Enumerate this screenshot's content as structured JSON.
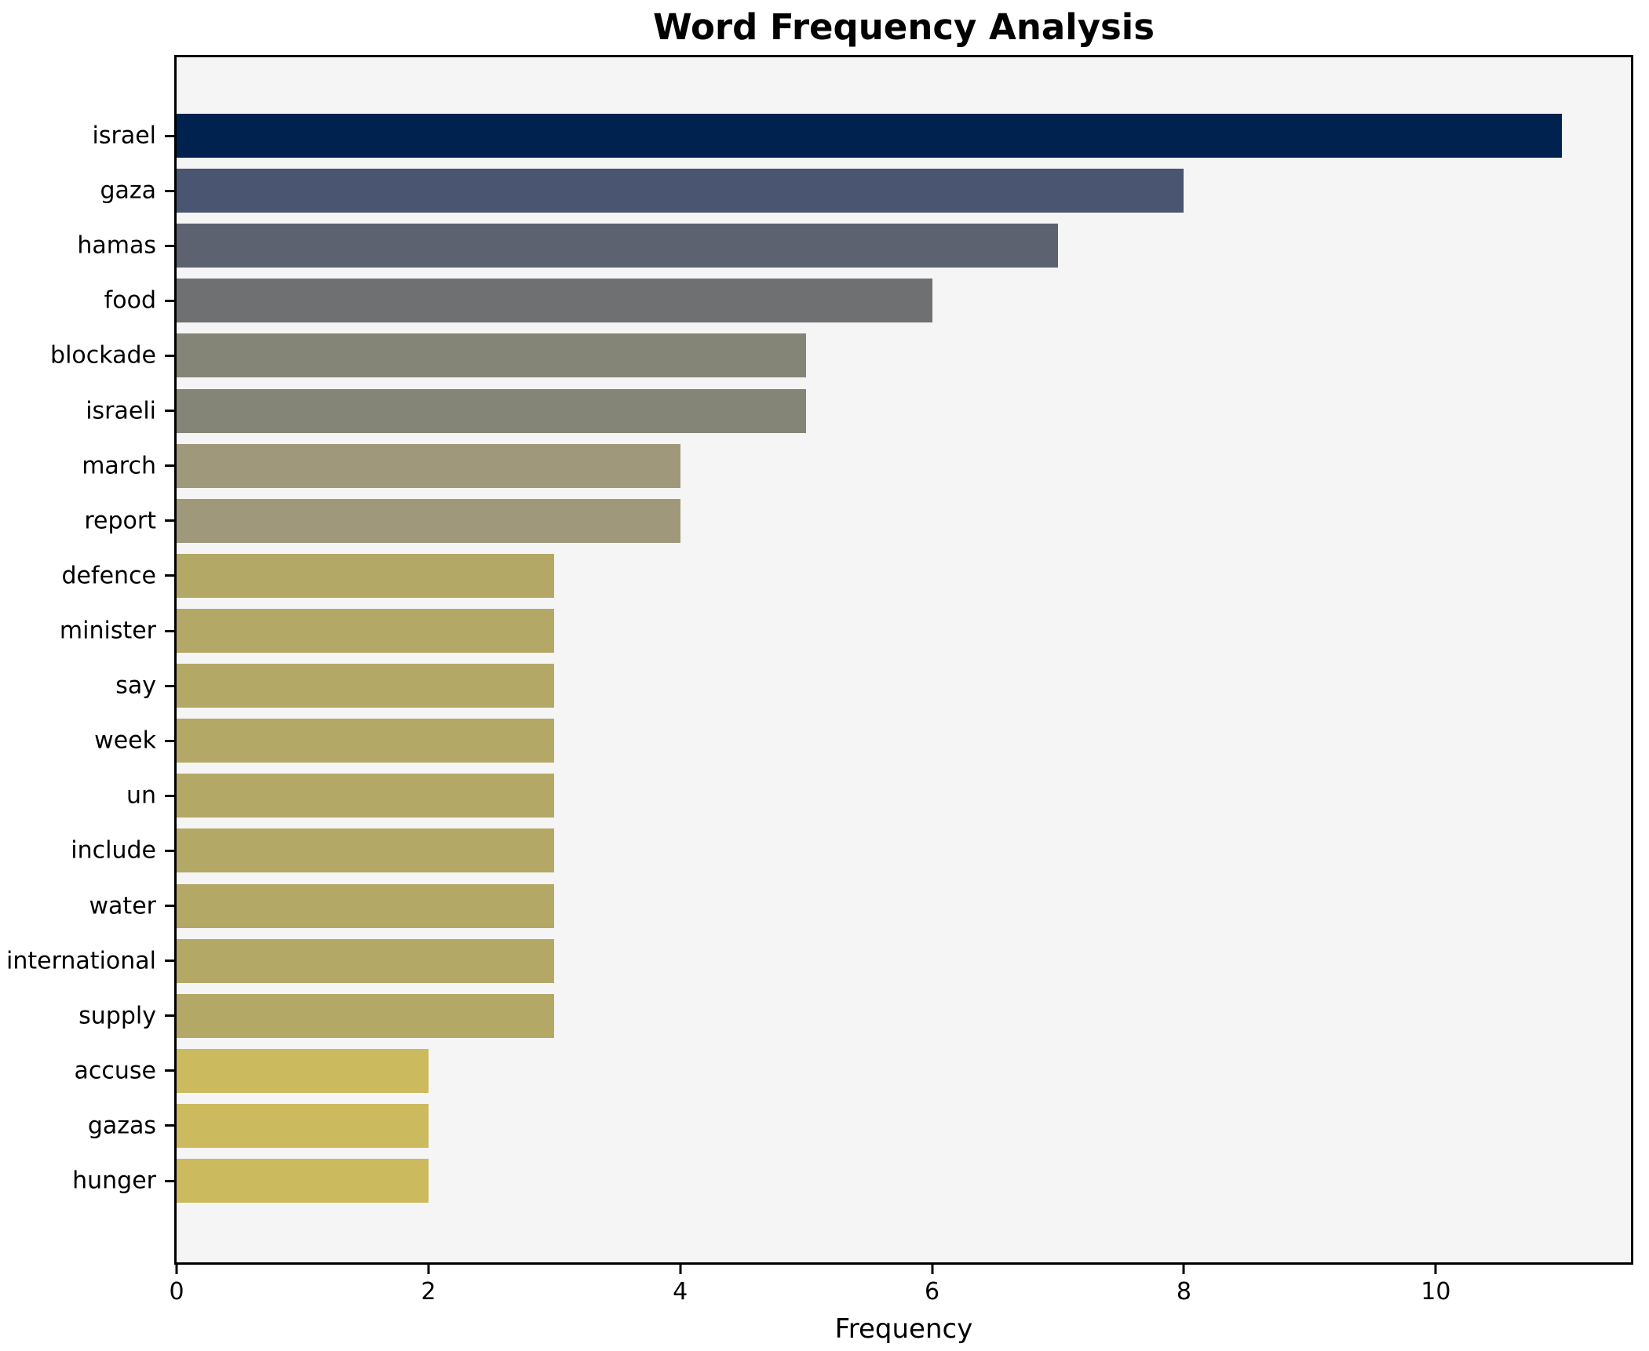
{
  "chart_data": {
    "type": "bar",
    "orientation": "horizontal",
    "title": "Word Frequency Analysis",
    "xlabel": "Frequency",
    "ylabel": "",
    "categories": [
      "israel",
      "gaza",
      "hamas",
      "food",
      "blockade",
      "israeli",
      "march",
      "report",
      "defence",
      "minister",
      "say",
      "week",
      "un",
      "include",
      "water",
      "international",
      "supply",
      "accuse",
      "gazas",
      "hunger"
    ],
    "values": [
      11,
      8,
      7,
      6,
      5,
      5,
      4,
      4,
      3,
      3,
      3,
      3,
      3,
      3,
      3,
      3,
      3,
      2,
      2,
      2
    ],
    "bar_colors": [
      "#00224e",
      "#4a5571",
      "#5c6270",
      "#6f7072",
      "#858577",
      "#858577",
      "#a0987a",
      "#a0987a",
      "#b4a866",
      "#b4a866",
      "#b4a866",
      "#b4a866",
      "#b4a866",
      "#b4a866",
      "#b4a866",
      "#b4a866",
      "#b4a866",
      "#ccba5e",
      "#ccba5e",
      "#ccba5e"
    ],
    "xlim": [
      0,
      11.55
    ],
    "xticks": [
      0,
      2,
      4,
      6,
      8,
      10
    ],
    "grid": false,
    "legend": "none",
    "plot_background": "#f5f5f6",
    "figure_background": "#ffffff",
    "spine_color": "#000000",
    "text_color": "#000000",
    "colormap": "cividis"
  }
}
